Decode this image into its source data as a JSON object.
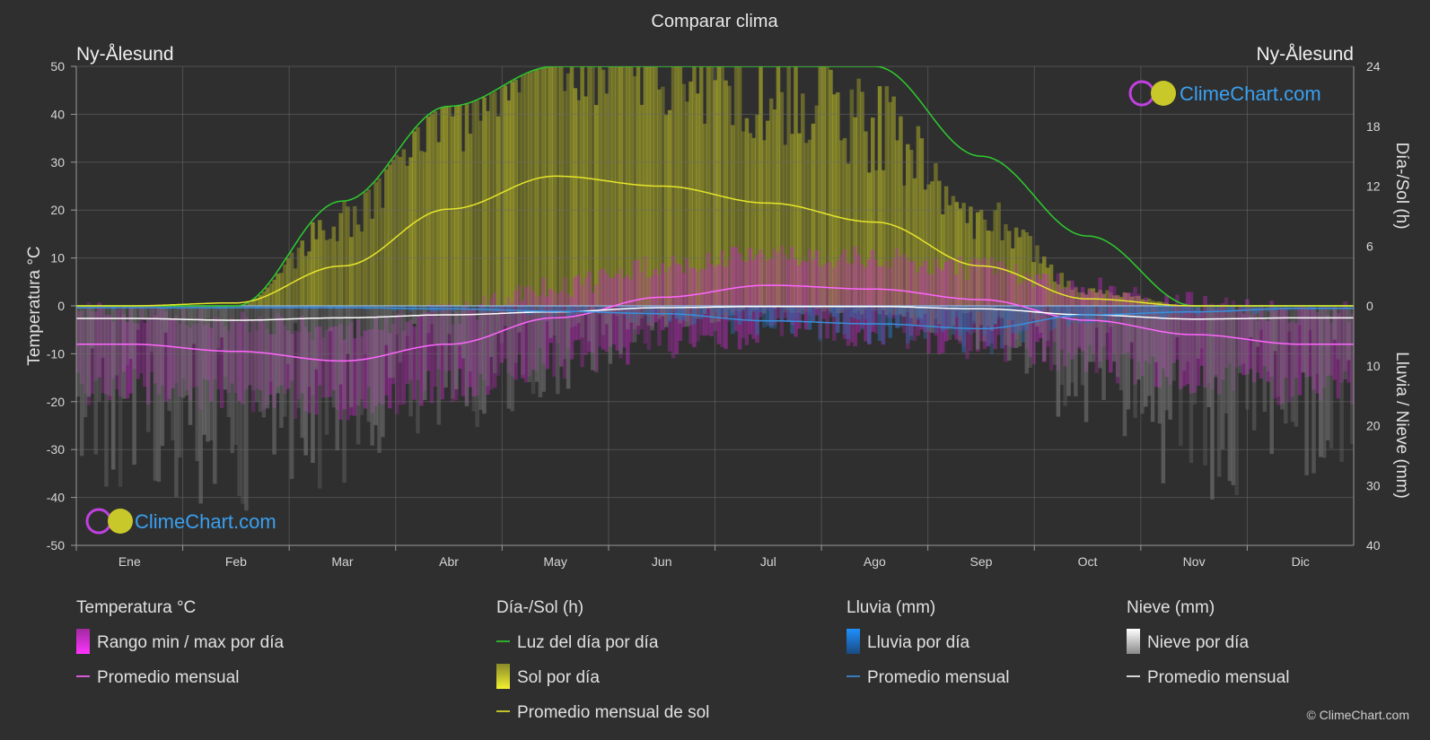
{
  "chart_data": {
    "type": "line",
    "title": "Comparar clima",
    "location_left": "Ny-Ålesund",
    "location_right": "Ny-Ålesund",
    "categories": [
      "Ene",
      "Feb",
      "Mar",
      "Abr",
      "May",
      "Jun",
      "Jul",
      "Ago",
      "Sep",
      "Oct",
      "Nov",
      "Dic"
    ],
    "y_left": {
      "label": "Temperatura °C",
      "range": [
        -50,
        50
      ],
      "ticks": [
        50,
        40,
        30,
        20,
        10,
        0,
        -10,
        -20,
        -30,
        -40,
        -50
      ]
    },
    "y_right_top": {
      "label": "Día-/Sol (h)",
      "range": [
        0,
        24
      ],
      "ticks": [
        24,
        18,
        12,
        6,
        0
      ]
    },
    "y_right_bottom": {
      "label": "Lluvia / Nieve (mm)",
      "range": [
        0,
        40
      ],
      "ticks": [
        0,
        10,
        20,
        30,
        40
      ]
    },
    "series": [
      {
        "name": "Luz del día por día",
        "axis": "daylight_h",
        "color": "#2ecc2e",
        "values": [
          0.0,
          0.0,
          10.5,
          20.0,
          24.0,
          24.0,
          24.0,
          24.0,
          15.0,
          7.0,
          0.0,
          0.0
        ]
      },
      {
        "name": "Promedio mensual de sol",
        "axis": "daylight_h",
        "color": "#e6e62a",
        "values": [
          0.0,
          0.3,
          4.0,
          9.7,
          13.0,
          12.0,
          10.3,
          8.4,
          4.0,
          0.7,
          0.0,
          0.0
        ]
      },
      {
        "name": "Promedio mensual",
        "group": "Temperatura °C",
        "axis": "temperature_c",
        "color": "#ff66ff",
        "values": [
          -8.0,
          -9.5,
          -11.5,
          -8.0,
          -2.5,
          1.8,
          4.3,
          3.5,
          1.3,
          -3.0,
          -6.0,
          -8.0
        ]
      },
      {
        "name": "Promedio mensual",
        "group": "Lluvia (mm)",
        "axis": "precip_mm",
        "color": "#3a8fdd",
        "values": [
          0.3,
          0.3,
          0.3,
          0.5,
          0.9,
          1.3,
          2.5,
          3.0,
          3.8,
          1.5,
          1.0,
          0.4
        ]
      },
      {
        "name": "Promedio mensual",
        "group": "Nieve (mm)",
        "axis": "precip_mm",
        "color": "#ffffff",
        "values": [
          2.1,
          2.4,
          2.0,
          1.5,
          1.0,
          0.3,
          0.1,
          0.1,
          0.5,
          1.5,
          2.2,
          2.0
        ]
      }
    ],
    "grid": true
  },
  "legend": {
    "groups": [
      {
        "title": "Temperatura °C",
        "items": [
          {
            "label": "Rango min / max por día",
            "swatch": "gradient",
            "color": "#e83ae8"
          },
          {
            "label": "Promedio mensual",
            "swatch": "line",
            "color": "#ff66ff"
          }
        ]
      },
      {
        "title": "Día-/Sol (h)",
        "items": [
          {
            "label": "Luz del día por día",
            "swatch": "line",
            "color": "#2ecc2e"
          },
          {
            "label": "Sol por día",
            "swatch": "gradient",
            "color": "#d6d62a"
          },
          {
            "label": "Promedio mensual de sol",
            "swatch": "line",
            "color": "#e6e62a"
          }
        ]
      },
      {
        "title": "Lluvia (mm)",
        "items": [
          {
            "label": "Lluvia por día",
            "swatch": "gradient",
            "color": "#2a8ae0"
          },
          {
            "label": "Promedio mensual",
            "swatch": "line",
            "color": "#3a8fdd"
          }
        ]
      },
      {
        "title": "Nieve (mm)",
        "items": [
          {
            "label": "Nieve por día",
            "swatch": "gradient",
            "color": "#e0e0e0"
          },
          {
            "label": "Promedio mensual",
            "swatch": "line",
            "color": "#ffffff"
          }
        ]
      }
    ]
  },
  "brand": {
    "name": "ClimeChart.com",
    "copyright": "© ClimeChart.com",
    "color": "#3aa0f0"
  }
}
